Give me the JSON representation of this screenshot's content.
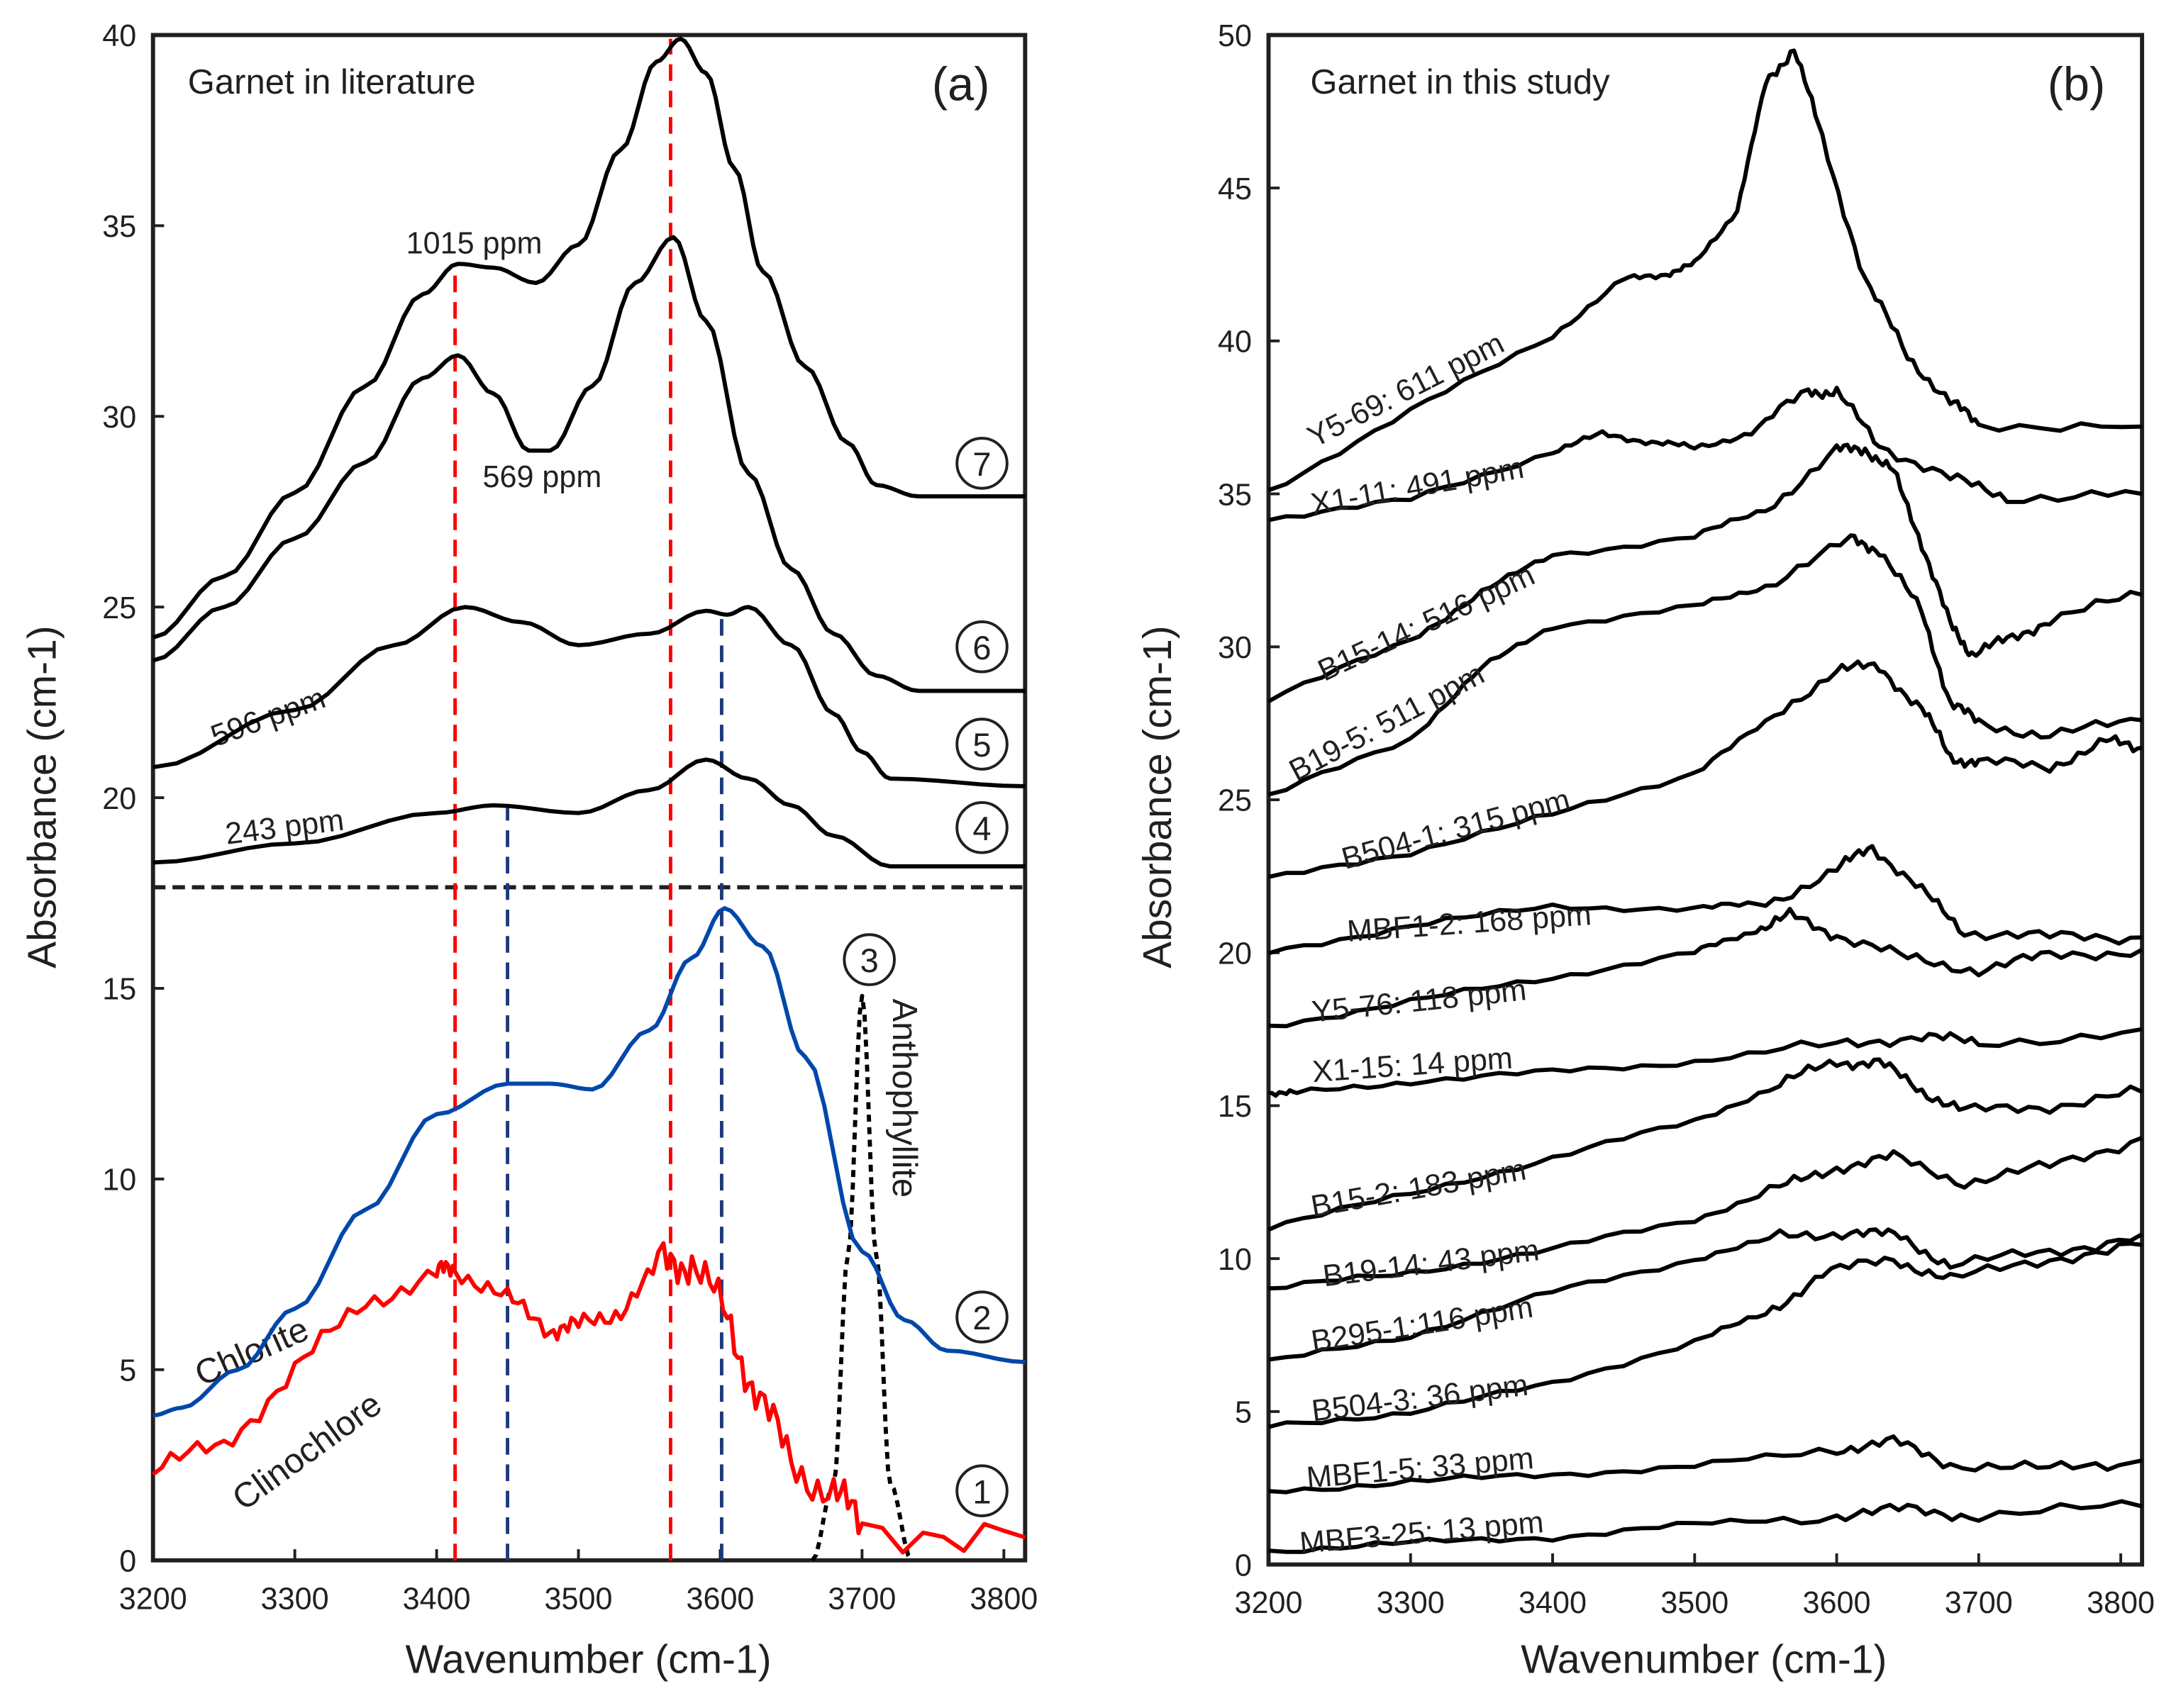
{
  "chart_data": [
    {
      "type": "line",
      "panel_label": "(a)",
      "title": "Garnet in literature",
      "xlabel": "Wavenumber (cm-1)",
      "ylabel": "Absorbance (cm-1)",
      "xlim": [
        3200,
        3815
      ],
      "ylim": [
        0,
        40
      ],
      "xticks": [
        3200,
        3300,
        3400,
        3500,
        3600,
        3700,
        3800
      ],
      "yticks": [
        0,
        5,
        10,
        15,
        20,
        25,
        30,
        35,
        40
      ],
      "grid": false,
      "separator_y": 17.65,
      "series": [
        {
          "id": "7",
          "label": "1015 ppm",
          "color": "#000000",
          "x": [
            3200,
            3250,
            3300,
            3350,
            3390,
            3415,
            3440,
            3470,
            3500,
            3530,
            3555,
            3572,
            3590,
            3610,
            3630,
            3660,
            3690,
            3710,
            3740,
            3815
          ],
          "y": [
            24.2,
            25.8,
            28,
            30.8,
            33.2,
            34,
            33.9,
            33.5,
            34.5,
            37,
            39.3,
            39.9,
            39,
            36.5,
            33.8,
            31.3,
            29.3,
            28.2,
            27.9,
            27.9
          ]
        },
        {
          "id": "6",
          "label": "569 ppm",
          "color": "#000000",
          "x": [
            3200,
            3250,
            3300,
            3350,
            3390,
            3415,
            3440,
            3465,
            3480,
            3510,
            3540,
            3567,
            3590,
            3620,
            3650,
            3680,
            3710,
            3740,
            3815
          ],
          "y": [
            23.6,
            25,
            26.8,
            28.8,
            31,
            31.6,
            30.6,
            29.1,
            29.1,
            30.8,
            33.5,
            34.7,
            32.5,
            28.5,
            26,
            24.3,
            23.2,
            22.8,
            22.8
          ]
        },
        {
          "id": "5",
          "label": "596 ppm",
          "color": "#000000",
          "x": [
            3200,
            3300,
            3370,
            3420,
            3460,
            3500,
            3550,
            3590,
            3605,
            3620,
            3650,
            3680,
            3700,
            3720,
            3815
          ],
          "y": [
            20.8,
            22.3,
            24,
            25,
            24.6,
            24,
            24.3,
            24.9,
            24.8,
            25,
            24,
            22.2,
            21.2,
            20.5,
            20.3
          ]
        },
        {
          "id": "4",
          "label": "243 ppm",
          "color": "#000000",
          "x": [
            3200,
            3300,
            3400,
            3440,
            3500,
            3550,
            3590,
            3620,
            3650,
            3680,
            3720,
            3815
          ],
          "y": [
            18.3,
            18.8,
            19.6,
            19.8,
            19.6,
            20.2,
            21,
            20.5,
            19.8,
            19,
            18.2,
            18.2
          ]
        },
        {
          "id": "3",
          "label": "Anthophyllite",
          "color": "#000000",
          "style": "dotted",
          "x": [
            3665,
            3680,
            3690,
            3700,
            3710,
            3720,
            3735
          ],
          "y": [
            0,
            2,
            8,
            14.8,
            8,
            2,
            0
          ]
        },
        {
          "id": "2",
          "label": "Chlorite",
          "color": "#0047ab",
          "x": [
            3200,
            3220,
            3260,
            3300,
            3350,
            3400,
            3450,
            3480,
            3510,
            3550,
            3580,
            3603,
            3630,
            3660,
            3700,
            3730,
            3760,
            3815
          ],
          "y": [
            3.8,
            4,
            5,
            6.6,
            9.2,
            11.7,
            12.5,
            12.5,
            12.35,
            13.9,
            15.8,
            17.1,
            16.1,
            13.2,
            8.1,
            6.3,
            5.5,
            5.2
          ]
        },
        {
          "id": "1",
          "label": "Clinochlore",
          "color": "#ff0000",
          "noisy": true,
          "x": [
            3200,
            3250,
            3300,
            3350,
            3400,
            3413,
            3450,
            3480,
            3500,
            3530,
            3560,
            3580,
            3605,
            3625,
            3650,
            3680,
            3700,
            3815
          ],
          "y": [
            2.4,
            3,
            5,
            6.8,
            7.5,
            7.7,
            6.8,
            6.1,
            6.1,
            6.6,
            7.8,
            7.9,
            6.3,
            4.4,
            2.6,
            1.7,
            1,
            0.6
          ]
        }
      ],
      "reference_lines": [
        {
          "x": 3413,
          "y_top": 34,
          "color": "#ff0000"
        },
        {
          "x": 3565,
          "y_top": 39.9,
          "color": "#ff0000"
        },
        {
          "x": 3450,
          "y_top": 19.8,
          "color": "#1f3a7a"
        },
        {
          "x": 3601,
          "y_top": 24.8,
          "color": "#1f3a7a"
        }
      ]
    },
    {
      "type": "line",
      "panel_label": "(b)",
      "title": "Garnet in this study",
      "xlabel": "Wavenumber (cm-1)",
      "ylabel": "Absorbance (cm-1)",
      "xlim": [
        3200,
        3815
      ],
      "ylim": [
        0,
        50
      ],
      "xticks": [
        3200,
        3300,
        3400,
        3500,
        3600,
        3700,
        3800
      ],
      "yticks": [
        0,
        5,
        10,
        15,
        20,
        25,
        30,
        35,
        40,
        45,
        50
      ],
      "grid": false,
      "series": [
        {
          "label": "Y5-69: 611 ppm",
          "x": [
            3200,
            3300,
            3400,
            3450,
            3480,
            3500,
            3530,
            3550,
            3570,
            3590,
            3620,
            3650,
            3680,
            3700,
            3815
          ],
          "y": [
            35.1,
            37.7,
            40.2,
            42,
            42.2,
            42.5,
            44.3,
            48.4,
            49.6,
            46.6,
            42,
            39.5,
            38,
            37.3,
            37.2
          ]
        },
        {
          "label": "X1-11: 491 ppm",
          "x": [
            3200,
            3300,
            3400,
            3435,
            3470,
            3500,
            3540,
            3580,
            3600,
            3630,
            3680,
            3720,
            3815
          ],
          "y": [
            34.2,
            34.8,
            36.4,
            36.95,
            36.7,
            36.5,
            37,
            38.4,
            38.3,
            36.6,
            35.5,
            34.9,
            35
          ]
        },
        {
          "label": "B15-14: 516 ppm",
          "x": [
            3200,
            3300,
            3350,
            3400,
            3500,
            3550,
            3600,
            3620,
            3640,
            3660,
            3680,
            3695,
            3720,
            3750,
            3815
          ],
          "y": [
            28.3,
            30.2,
            31.8,
            33,
            33.6,
            34.5,
            36.4,
            36.5,
            35.7,
            33.4,
            30.7,
            29.8,
            30.2,
            30.9,
            31.7
          ]
        },
        {
          "label": "B19-5: 511 ppm",
          "x": [
            3200,
            3300,
            3350,
            3400,
            3500,
            3550,
            3610,
            3630,
            3660,
            3680,
            3700,
            3750,
            3815
          ],
          "y": [
            25.1,
            27,
            29.3,
            30.7,
            31.3,
            32,
            33.5,
            33.2,
            31.1,
            28.2,
            27.5,
            27.1,
            27.6
          ]
        },
        {
          "label": "B504-1: 315 ppm",
          "x": [
            3200,
            3300,
            3400,
            3500,
            3550,
            3600,
            3630,
            3660,
            3680,
            3700,
            3750,
            3790,
            3815
          ],
          "y": [
            22.4,
            23.3,
            24.5,
            25.9,
            27.5,
            29.3,
            29.3,
            28,
            26.4,
            26.2,
            26.1,
            26.9,
            26.7
          ]
        },
        {
          "label": "MBF1-2: 168 ppm",
          "x": [
            3200,
            3300,
            3400,
            3500,
            3550,
            3600,
            3625,
            3660,
            3690,
            3750,
            3815
          ],
          "y": [
            20,
            20.9,
            21.5,
            21.45,
            21.6,
            22.7,
            23.5,
            22,
            20.7,
            20.5,
            20.5
          ]
        },
        {
          "label": "Y5-76: 118  ppm",
          "x": [
            3200,
            3300,
            3400,
            3500,
            3540,
            3567,
            3600,
            3650,
            3700,
            3750,
            3815
          ],
          "y": [
            17.6,
            18.4,
            19.2,
            20,
            20.7,
            21.2,
            20.6,
            19.8,
            19.45,
            19.9,
            20.1
          ]
        },
        {
          "label": "X1-15: 14 ppm",
          "x": [
            3200,
            3220,
            3300,
            3400,
            3500,
            3600,
            3660,
            3700,
            3815
          ],
          "y": [
            15.45,
            15.4,
            15.8,
            16.1,
            16.45,
            17,
            17.3,
            17,
            17.5
          ]
        },
        {
          "label": "B15-2: 183 ppm",
          "x": [
            3200,
            3300,
            3400,
            3500,
            3560,
            3600,
            3630,
            3660,
            3690,
            3750,
            3815
          ],
          "y": [
            11.05,
            12.1,
            13.3,
            14.5,
            15.7,
            16.45,
            16.4,
            15.5,
            14.8,
            15,
            15.45
          ]
        },
        {
          "label": "B19-14: 43 ppm",
          "x": [
            3200,
            3300,
            3400,
            3500,
            3560,
            3600,
            3640,
            3690,
            3750,
            3815
          ],
          "y": [
            9,
            9.55,
            10.3,
            11.3,
            12.3,
            13,
            13.3,
            12.5,
            13,
            13.95
          ]
        },
        {
          "label": "B295-1:116 ppm",
          "x": [
            3200,
            3300,
            3400,
            3500,
            3560,
            3610,
            3645,
            3680,
            3750,
            3815
          ],
          "y": [
            6.6,
            7.5,
            8.9,
            10,
            10.7,
            10.9,
            10.7,
            9.8,
            10.2,
            10.8
          ]
        },
        {
          "label": "B504-3: 36 ppm",
          "x": [
            3200,
            3300,
            3400,
            3500,
            3550,
            3590,
            3640,
            3680,
            3750,
            3815
          ],
          "y": [
            4.5,
            5,
            5.9,
            7.3,
            8.2,
            9.5,
            10,
            9.3,
            10,
            10.45
          ]
        },
        {
          "label": "MBF1-5: 33 ppm",
          "x": [
            3200,
            3300,
            3400,
            3500,
            3600,
            3640,
            3680,
            3750,
            3815
          ],
          "y": [
            2.4,
            2.7,
            2.95,
            3.2,
            3.8,
            4,
            3.3,
            3.1,
            3.4
          ]
        },
        {
          "label": "MBF3-25: 13 ppm",
          "x": [
            3200,
            3300,
            3400,
            3500,
            3600,
            3650,
            3700,
            3815
          ],
          "y": [
            0.45,
            0.7,
            0.9,
            1.3,
            1.6,
            1.8,
            1.6,
            1.9
          ]
        }
      ]
    }
  ]
}
